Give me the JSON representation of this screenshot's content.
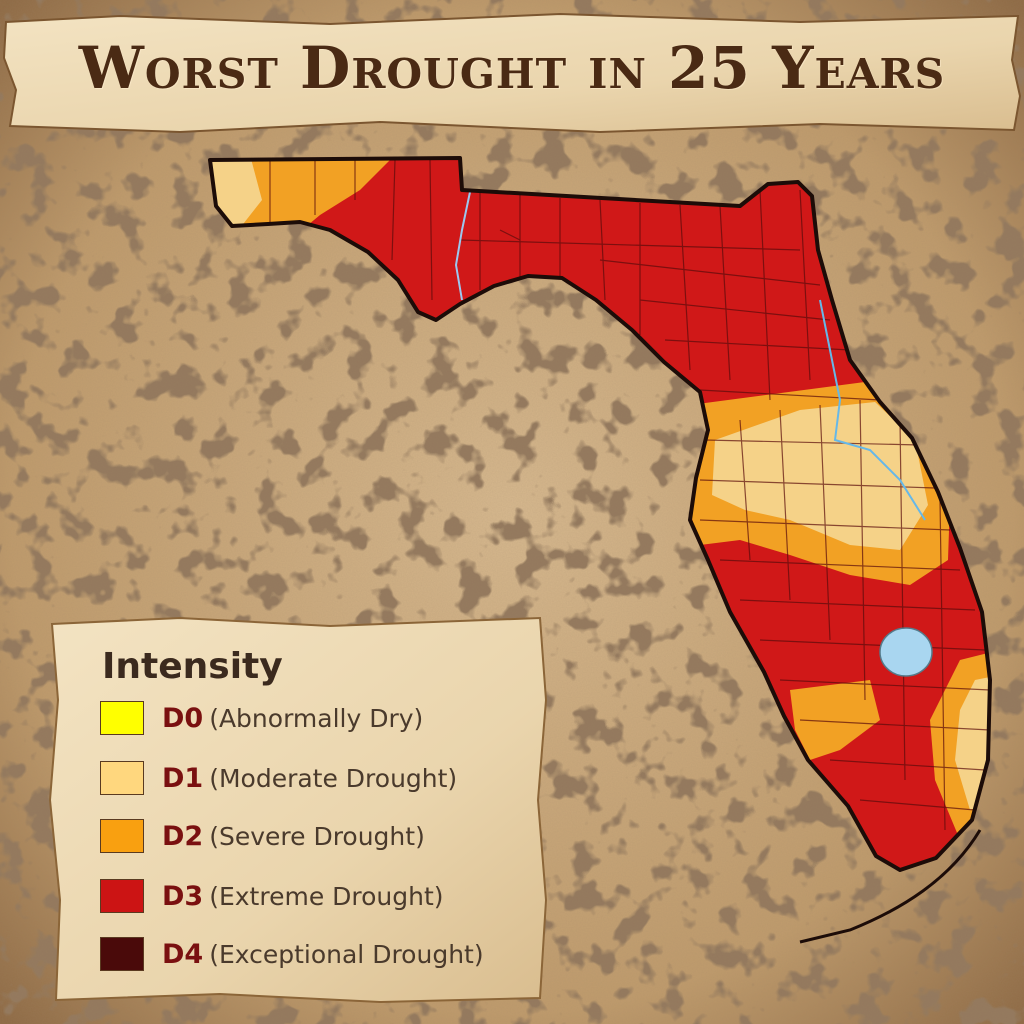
{
  "title": "Worst Drought in 25 Years",
  "legend": {
    "title": "Intensity",
    "items": [
      {
        "code": "D0",
        "label": "(Abnormally Dry)",
        "color": "#ffff00"
      },
      {
        "code": "D1",
        "label": "(Moderate Drought)",
        "color": "#ffd77e"
      },
      {
        "code": "D2",
        "label": "(Severe Drought)",
        "color": "#f9a010"
      },
      {
        "code": "D3",
        "label": "(Extreme Drought)",
        "color": "#cc1414"
      },
      {
        "code": "D4",
        "label": "(Exceptional Drought)",
        "color": "#4a0a0a"
      }
    ]
  },
  "map": {
    "region": "Florida",
    "colors": {
      "d1": "#f5d288",
      "d2": "#f2a124",
      "d3": "#d01818",
      "water": "#a9d6f0",
      "outline": "#1c0c08",
      "county_line": "#5a0c0c"
    }
  }
}
